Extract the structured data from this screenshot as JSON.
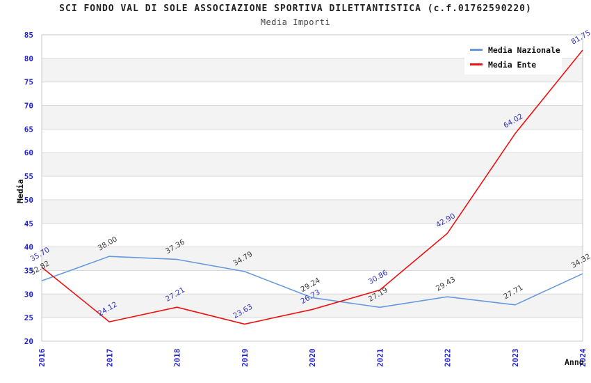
{
  "chart_data": {
    "type": "line",
    "title": "SCI FONDO VAL DI SOLE ASSOCIAZIONE SPORTIVA DILETTANTISTICA (c.f.01762590220)",
    "subtitle": "Media Importi",
    "xlabel": "Anno",
    "ylabel": "Media",
    "categories": [
      "2016",
      "2017",
      "2018",
      "2019",
      "2020",
      "2021",
      "2022",
      "2023",
      "2024"
    ],
    "ylim": [
      20,
      85
    ],
    "ytick_step": 5,
    "grid": "horizontal-bands-alternating",
    "legend_position": "top-right",
    "series": [
      {
        "name": "Media Nazionale",
        "color": "#6699dd",
        "label_color": "#3c3c3c",
        "values": [
          32.82,
          38.0,
          37.36,
          34.79,
          29.24,
          27.19,
          29.43,
          27.71,
          34.32
        ]
      },
      {
        "name": "Media Ente",
        "color": "#ee1111",
        "label_color": "#3333bb",
        "values": [
          35.7,
          24.12,
          27.21,
          23.63,
          26.73,
          30.86,
          42.9,
          64.02,
          81.75
        ]
      }
    ],
    "colors": {
      "axis_tick_labels": "#2222cc",
      "title_text": "#222222",
      "subtitle_text": "#444444",
      "band_fill": "#f3f3f3",
      "grid_line": "#d9d9d9",
      "plot_border": "#c9c9c9",
      "background": "#ffffff"
    }
  }
}
